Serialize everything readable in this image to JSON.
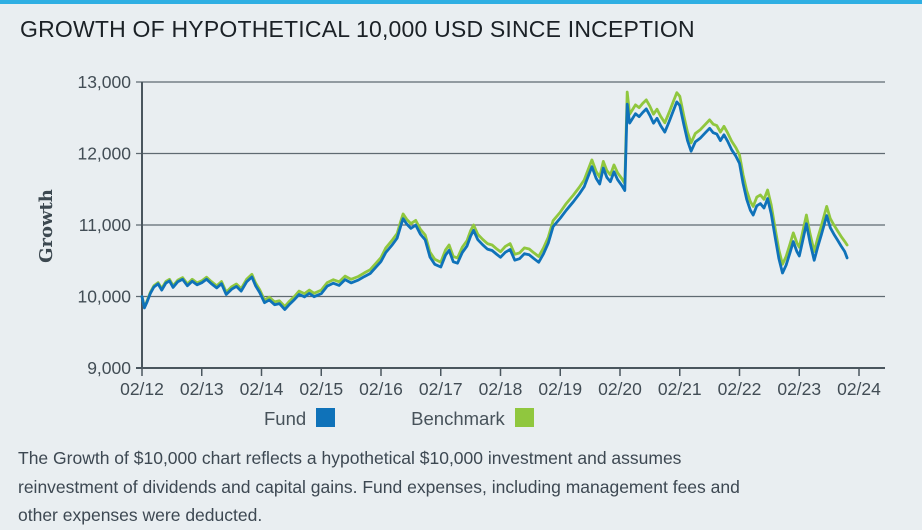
{
  "header": {
    "title": "GROWTH OF HYPOTHETICAL 10,000 USD SINCE INCEPTION"
  },
  "style_colors": {
    "top_border": "#2fafe3",
    "background": "#e9eef1",
    "axis": "#4a565e",
    "grid": "#5f6a72",
    "tick_text": "#424d55"
  },
  "legend": {
    "items": [
      {
        "label": "Fund",
        "color": "#0f72b9"
      },
      {
        "label": "Benchmark",
        "color": "#90c73e"
      }
    ]
  },
  "footnote": {
    "lines": [
      "The Growth of $10,000 chart reflects a hypothetical $10,000 investment and assumes",
      "reinvestment of dividends and capital gains. Fund expenses, including management fees and",
      "other expenses were deducted."
    ]
  },
  "chart_data": {
    "type": "line",
    "title": "GROWTH OF HYPOTHETICAL 10,000 USD SINCE INCEPTION",
    "xlabel": "",
    "ylabel": "Growth",
    "grid": true,
    "legend_position": "bottom",
    "ylim": [
      9000,
      13000
    ],
    "y_ticks": [
      9000,
      10000,
      11000,
      12000,
      13000
    ],
    "y_tick_labels": [
      "9,000",
      "10,000",
      "11,000",
      "12,000",
      "13,000"
    ],
    "x_tick_labels": [
      "02/12",
      "02/13",
      "02/14",
      "02/15",
      "02/16",
      "02/17",
      "02/18",
      "02/19",
      "02/20",
      "02/21",
      "02/22",
      "02/23",
      "02/24"
    ],
    "x_unit": "years_since_02/12",
    "x_domain": [
      0,
      12.43
    ],
    "x": [
      0.0,
      0.04,
      0.08,
      0.14,
      0.2,
      0.27,
      0.33,
      0.4,
      0.46,
      0.52,
      0.6,
      0.68,
      0.76,
      0.84,
      0.92,
      1.0,
      1.08,
      1.16,
      1.25,
      1.33,
      1.41,
      1.5,
      1.58,
      1.66,
      1.75,
      1.84,
      1.9,
      1.97,
      2.05,
      2.13,
      2.22,
      2.3,
      2.39,
      2.47,
      2.55,
      2.63,
      2.72,
      2.8,
      2.88,
      3.0,
      3.1,
      3.2,
      3.3,
      3.4,
      3.5,
      3.62,
      3.72,
      3.82,
      3.9,
      4.0,
      4.08,
      4.18,
      4.27,
      4.33,
      4.37,
      4.43,
      4.5,
      4.58,
      4.66,
      4.74,
      4.82,
      4.9,
      5.0,
      5.08,
      5.14,
      5.21,
      5.28,
      5.36,
      5.44,
      5.5,
      5.55,
      5.62,
      5.7,
      5.78,
      5.86,
      5.93,
      6.0,
      6.08,
      6.16,
      6.24,
      6.32,
      6.4,
      6.48,
      6.56,
      6.64,
      6.72,
      6.8,
      6.88,
      7.0,
      7.1,
      7.22,
      7.32,
      7.4,
      7.47,
      7.53,
      7.6,
      7.66,
      7.72,
      7.78,
      7.84,
      7.9,
      7.96,
      8.03,
      8.08,
      8.12,
      8.16,
      8.2,
      8.26,
      8.32,
      8.38,
      8.44,
      8.5,
      8.56,
      8.62,
      8.68,
      8.75,
      8.82,
      8.88,
      8.95,
      9.0,
      9.07,
      9.13,
      9.19,
      9.26,
      9.34,
      9.42,
      9.5,
      9.56,
      9.62,
      9.68,
      9.74,
      9.8,
      9.87,
      9.94,
      10.0,
      10.06,
      10.12,
      10.18,
      10.23,
      10.29,
      10.35,
      10.41,
      10.47,
      10.53,
      10.6,
      10.66,
      10.72,
      10.78,
      10.84,
      10.9,
      10.96,
      11.0,
      11.06,
      11.12,
      11.18,
      11.25,
      11.31,
      11.37,
      11.46,
      11.52,
      11.58,
      11.64,
      11.7,
      11.76,
      11.8
    ],
    "series": [
      {
        "name": "Fund",
        "color": "#0f72b9",
        "values": [
          10000,
          9840,
          9915,
          10045,
          10133,
          10176,
          10090,
          10189,
          10218,
          10127,
          10207,
          10241,
          10150,
          10214,
          10163,
          10193,
          10242,
          10181,
          10120,
          10179,
          10028,
          10102,
          10141,
          10075,
          10204,
          10273,
          10152,
          10056,
          9913,
          9952,
          9886,
          9900,
          9818,
          9892,
          9956,
          10030,
          9994,
          10043,
          9997,
          10040,
          10146,
          10186,
          10155,
          10236,
          10190,
          10229,
          10278,
          10322,
          10396,
          10490,
          10616,
          10715,
          10815,
          10984,
          11088,
          11014,
          10952,
          10998,
          10872,
          10792,
          10551,
          10450,
          10412,
          10577,
          10646,
          10486,
          10466,
          10616,
          10706,
          10845,
          10924,
          10794,
          10724,
          10663,
          10644,
          10594,
          10548,
          10618,
          10658,
          10508,
          10528,
          10598,
          10583,
          10528,
          10478,
          10597,
          10748,
          10977,
          11096,
          11206,
          11326,
          11436,
          11536,
          11686,
          11816,
          11655,
          11574,
          11796,
          11664,
          11605,
          11744,
          11634,
          11552,
          11483,
          12690,
          12425,
          12476,
          12556,
          12515,
          12574,
          12624,
          12533,
          12424,
          12493,
          12392,
          12300,
          12441,
          12572,
          12722,
          12671,
          12402,
          12182,
          12032,
          12162,
          12212,
          12282,
          12352,
          12291,
          12271,
          12181,
          12262,
          12172,
          12052,
          11962,
          11862,
          11581,
          11360,
          11209,
          11140,
          11269,
          11299,
          11238,
          11369,
          11158,
          10810,
          10528,
          10328,
          10438,
          10598,
          10768,
          10628,
          10567,
          10788,
          11018,
          10757,
          10506,
          10696,
          10866,
          11132,
          10962,
          10872,
          10790,
          10706,
          10630,
          10540
        ]
      },
      {
        "name": "Benchmark",
        "color": "#90c73e",
        "values": [
          10000,
          9850,
          9930,
          10060,
          10150,
          10195,
          10110,
          10210,
          10240,
          10150,
          10230,
          10265,
          10175,
          10240,
          10190,
          10220,
          10270,
          10210,
          10150,
          10210,
          10060,
          10135,
          10175,
          10110,
          10240,
          10310,
          10190,
          10095,
          9950,
          9990,
          9925,
          9940,
          9860,
          9935,
          10000,
          10075,
          10040,
          10090,
          10045,
          10090,
          10195,
          10235,
          10205,
          10285,
          10240,
          10280,
          10330,
          10375,
          10450,
          10545,
          10680,
          10780,
          10880,
          11050,
          11155,
          11080,
          11020,
          11065,
          10940,
          10860,
          10620,
          10520,
          10480,
          10650,
          10720,
          10560,
          10540,
          10690,
          10780,
          10920,
          11000,
          10870,
          10800,
          10740,
          10720,
          10670,
          10625,
          10700,
          10740,
          10590,
          10610,
          10680,
          10665,
          10610,
          10560,
          10680,
          10830,
          11060,
          11180,
          11300,
          11420,
          11530,
          11630,
          11780,
          11910,
          11750,
          11670,
          11890,
          11760,
          11700,
          11840,
          11730,
          11650,
          11580,
          12860,
          12550,
          12600,
          12680,
          12640,
          12700,
          12750,
          12660,
          12550,
          12620,
          12520,
          12430,
          12570,
          12700,
          12850,
          12800,
          12520,
          12300,
          12150,
          12280,
          12330,
          12400,
          12470,
          12410,
          12390,
          12300,
          12380,
          12290,
          12170,
          12080,
          11980,
          11700,
          11480,
          11330,
          11260,
          11390,
          11420,
          11360,
          11490,
          11280,
          10930,
          10650,
          10450,
          10560,
          10720,
          10890,
          10750,
          10690,
          10910,
          11140,
          10880,
          10630,
          10820,
          10990,
          11260,
          11090,
          11000,
          10920,
          10840,
          10770,
          10720
        ]
      }
    ]
  }
}
